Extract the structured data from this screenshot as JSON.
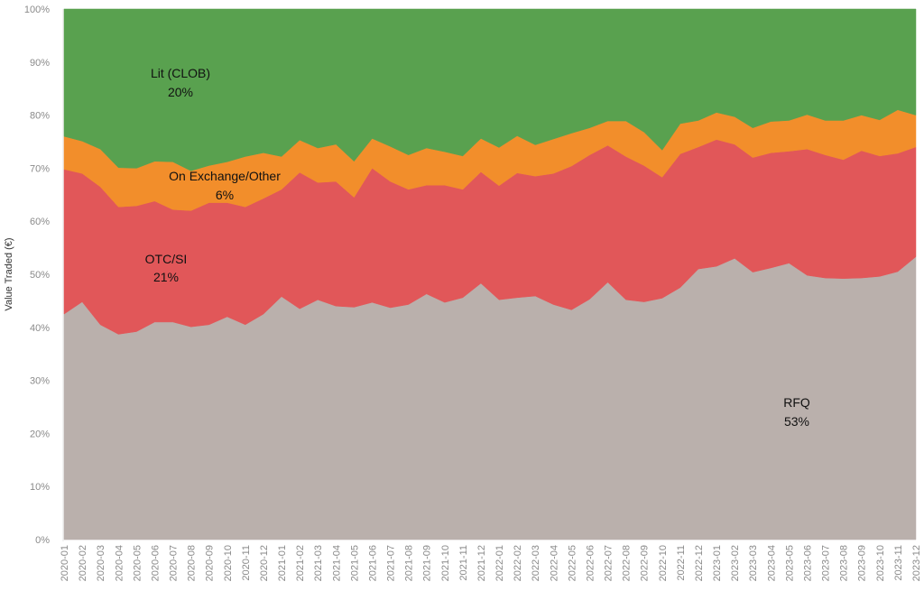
{
  "chart_data": {
    "type": "area",
    "stacked": "percent",
    "ylabel": "Value Traded (€)",
    "xlabel": "",
    "ylim": [
      0,
      100
    ],
    "yticks": [
      "0%",
      "10%",
      "20%",
      "30%",
      "40%",
      "50%",
      "60%",
      "70%",
      "80%",
      "90%",
      "100%"
    ],
    "grid": true,
    "x": [
      "2020-01",
      "2020-02",
      "2020-03",
      "2020-04",
      "2020-05",
      "2020-06",
      "2020-07",
      "2020-08",
      "2020-09",
      "2020-10",
      "2020-11",
      "2020-12",
      "2021-01",
      "2021-02",
      "2021-03",
      "2021-04",
      "2021-05",
      "2021-06",
      "2021-07",
      "2021-08",
      "2021-09",
      "2021-10",
      "2021-11",
      "2021-12",
      "2022-01",
      "2022-02",
      "2022-03",
      "2022-04",
      "2022-05",
      "2022-06",
      "2022-07",
      "2022-08",
      "2022-09",
      "2022-10",
      "2022-11",
      "2022-12",
      "2023-01",
      "2023-02",
      "2023-03",
      "2023-04",
      "2023-05",
      "2023-06",
      "2023-07",
      "2023-08",
      "2023-09",
      "2023-10",
      "2023-11",
      "2023-12"
    ],
    "series": [
      {
        "name": "RFQ",
        "color": "#bab0ac",
        "values": [
          42.5,
          44.8,
          40.5,
          38.7,
          39.2,
          41.0,
          41.0,
          40.1,
          40.5,
          42.0,
          40.5,
          42.5,
          45.8,
          43.5,
          45.2,
          44.0,
          43.8,
          44.7,
          43.7,
          44.3,
          46.3,
          44.7,
          45.6,
          48.3,
          45.2,
          45.6,
          45.9,
          44.3,
          43.3,
          45.3,
          48.5,
          45.2,
          44.8,
          45.5,
          47.5,
          51.0,
          51.5,
          53.0,
          50.4,
          51.2,
          52.1,
          49.8,
          49.3,
          49.2,
          49.3,
          49.6,
          50.5,
          53.3
        ]
      },
      {
        "name": "OTC/SI",
        "color": "#e15759",
        "values": [
          27.3,
          24.2,
          26.0,
          24.0,
          23.7,
          22.8,
          21.2,
          21.9,
          23.0,
          21.5,
          22.2,
          21.8,
          20.2,
          25.7,
          22.1,
          23.5,
          20.7,
          25.3,
          23.8,
          21.7,
          20.5,
          22.1,
          20.4,
          21.0,
          21.5,
          23.5,
          22.6,
          24.7,
          27.1,
          27.2,
          25.8,
          27.0,
          25.7,
          22.8,
          25.2,
          23.0,
          23.9,
          21.5,
          21.6,
          21.7,
          21.1,
          23.8,
          23.2,
          22.4,
          24.0,
          22.7,
          22.3,
          20.7
        ]
      },
      {
        "name": "On Exchange/Other",
        "color": "#f28e2b",
        "values": [
          6.2,
          6.1,
          7.1,
          7.4,
          7.1,
          7.5,
          9.0,
          7.5,
          7.0,
          7.7,
          9.5,
          8.6,
          6.2,
          6.1,
          6.5,
          7.0,
          6.8,
          5.6,
          6.6,
          6.5,
          7.0,
          6.3,
          6.3,
          6.3,
          7.2,
          7.0,
          5.9,
          6.5,
          6.2,
          5.1,
          4.6,
          6.7,
          6.3,
          5.1,
          5.7,
          5.0,
          5.1,
          5.2,
          5.6,
          5.9,
          5.8,
          6.5,
          6.5,
          7.4,
          6.7,
          6.8,
          8.2,
          6.0
        ]
      },
      {
        "name": "Lit (CLOB)",
        "color": "#59a14f",
        "values": [
          24.0,
          24.9,
          26.4,
          29.9,
          30.0,
          28.7,
          28.8,
          30.5,
          29.5,
          28.8,
          27.8,
          27.1,
          27.8,
          24.7,
          26.2,
          25.5,
          28.7,
          24.4,
          25.9,
          27.5,
          26.2,
          26.9,
          27.7,
          24.4,
          26.1,
          23.9,
          25.6,
          24.5,
          23.4,
          22.4,
          21.1,
          21.1,
          23.2,
          26.6,
          21.6,
          21.0,
          19.5,
          20.3,
          22.4,
          21.2,
          21.0,
          19.9,
          21.0,
          21.0,
          20.0,
          20.9,
          19.0,
          20.0
        ]
      }
    ],
    "annotations": [
      {
        "series": "Lit (CLOB)",
        "label": "Lit (CLOB)",
        "value": "20%"
      },
      {
        "series": "On Exchange/Other",
        "label": "On Exchange/Other",
        "value": "6%"
      },
      {
        "series": "OTC/SI",
        "label": "OTC/SI",
        "value": "21%"
      },
      {
        "series": "RFQ",
        "label": "RFQ",
        "value": "53%"
      }
    ]
  }
}
